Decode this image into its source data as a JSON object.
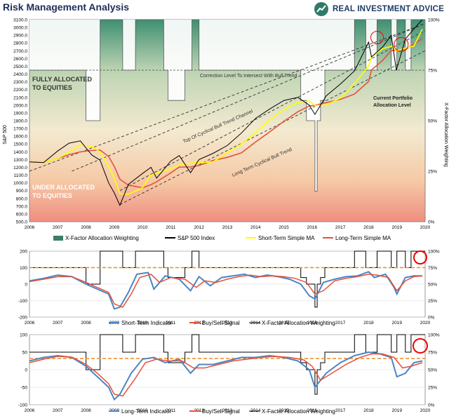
{
  "header": {
    "title": "Risk Management Analysis",
    "logo_text": "REAL INVESTMENT ADVICE"
  },
  "colors": {
    "allocation_fill": "#3a7d6a",
    "sp500": "#000000",
    "short_ma": "#ffff00",
    "long_ma": "#e8503a",
    "indicator_blue": "#4a86c5",
    "signal_red": "#e8503a",
    "dashed_orange": "#f08a24",
    "trend_lines": "#333333"
  },
  "chart_data": [
    {
      "type": "line",
      "title": "",
      "x_ticks": [
        "2006",
        "2007",
        "2008",
        "2009",
        "2010",
        "2011",
        "2012",
        "2013",
        "2014",
        "2015",
        "2016",
        "2017",
        "2018",
        "2019",
        "2020"
      ],
      "xlim": [
        2006,
        2020
      ],
      "ylabel": "S&P 500",
      "ylim": [
        500,
        3100
      ],
      "y_ticks": [
        "500.0",
        "600.0",
        "700.0",
        "800.0",
        "900.0",
        "1000.0",
        "1100.0",
        "1200.0",
        "1300.0",
        "1400.0",
        "1500.0",
        "1600.0",
        "1700.0",
        "1800.0",
        "1900.0",
        "2000.0",
        "2100.0",
        "2200.0",
        "2300.0",
        "2400.0",
        "2500.0",
        "2600.0",
        "2700.0",
        "2800.0",
        "2900.0",
        "3000.0",
        "3100.0"
      ],
      "y2label": "X-Factor Allocation Weighting",
      "y2_ticks": [
        "0%",
        "25%",
        "50%",
        "75%",
        "100%"
      ],
      "legend": [
        "X-Factor Allocation Weighting",
        "S&P 500 Index",
        "Short-Term Simple MA",
        "Long-Term Simple MA"
      ],
      "legend_position": "bottom",
      "annotations": [
        "FULLY ALLOCATED TO EQUITIES",
        "UNDER ALLOCATED TO EQUITIES",
        "Correction Level To Intersect With Bull Trend",
        "Top Of Cyclical Bull Trend Channel",
        "Long Term Cyclical Bull Trend",
        "Current Portfolio Allocation Level"
      ],
      "series": [
        {
          "name": "S&P 500 Index",
          "x": [
            2006,
            2006.5,
            2007,
            2007.4,
            2007.8,
            2008.2,
            2008.5,
            2008.8,
            2009.0,
            2009.2,
            2009.5,
            2010.0,
            2010.3,
            2010.5,
            2011.0,
            2011.3,
            2011.7,
            2012.0,
            2012.5,
            2013.0,
            2013.5,
            2014.0,
            2014.5,
            2015.0,
            2015.5,
            2015.9,
            2016.1,
            2016.5,
            2017.0,
            2017.5,
            2018.0,
            2018.1,
            2018.5,
            2018.8,
            2018.98,
            2019.3,
            2019.6,
            2019.9
          ],
          "y": [
            1270,
            1260,
            1410,
            1510,
            1540,
            1360,
            1290,
            1000,
            870,
            710,
            980,
            1120,
            1200,
            1060,
            1280,
            1350,
            1130,
            1300,
            1380,
            1480,
            1640,
            1830,
            1950,
            2060,
            2100,
            2000,
            1880,
            2120,
            2270,
            2440,
            2810,
            2620,
            2750,
            2900,
            2450,
            2850,
            2980,
            3100
          ]
        },
        {
          "name": "X-Factor Allocation Weighting",
          "x": [
            2006,
            2007.5,
            2007.5,
            2008,
            2008,
            2008.5,
            2008.5,
            2009.3,
            2009.3,
            2009.75,
            2009.75,
            2010.75,
            2010.75,
            2010.9,
            2010.9,
            2011.5,
            2011.5,
            2011.75,
            2011.75,
            2012,
            2012,
            2012.15,
            2012.15,
            2014.8,
            2014.8,
            2015.6,
            2015.6,
            2015.8,
            2015.8,
            2016.1,
            2016.1,
            2016.18,
            2016.18,
            2016.3,
            2016.3,
            2016.45,
            2016.45,
            2017.5,
            2017.5,
            2017.9,
            2017.9,
            2018.3,
            2018.3,
            2018.8,
            2018.8,
            2019.0,
            2019.0,
            2019.3,
            2019.3,
            2019.5,
            2019.5,
            2019.75,
            2019.75,
            2020
          ],
          "y": [
            75,
            75,
            75,
            75,
            50,
            50,
            100,
            100,
            75,
            75,
            100,
            100,
            75,
            75,
            60,
            60,
            75,
            75,
            100,
            100,
            75,
            75,
            75,
            75,
            75,
            75,
            60,
            60,
            50,
            50,
            15,
            15,
            50,
            50,
            60,
            60,
            75,
            75,
            100,
            100,
            75,
            75,
            100,
            100,
            75,
            75,
            100,
            100,
            75,
            75,
            100,
            100,
            100,
            100
          ]
        }
      ]
    },
    {
      "type": "line",
      "title": "",
      "x_ticks": [
        "2006",
        "2007",
        "2008",
        "2009",
        "2010",
        "2011",
        "2012",
        "2013",
        "2014",
        "2015",
        "2016",
        "2017",
        "2018",
        "2019",
        "2020"
      ],
      "xlim": [
        2006,
        2020
      ],
      "ylim": [
        -200,
        200
      ],
      "y_ticks": [
        "-200",
        "-100",
        "0",
        "100",
        "200"
      ],
      "y2_ticks": [
        "0%",
        "25%",
        "50%",
        "75%",
        "100%"
      ],
      "legend": [
        "Short-Term Indicator",
        "Buy/Sell Signal",
        "X-Factor Allocation Weighting"
      ],
      "legend_position": "bottom",
      "dashed_level": 75,
      "series": [
        {
          "name": "Short-Term Indicator",
          "x": [
            2006,
            2006.5,
            2007,
            2007.5,
            2008,
            2008.4,
            2008.8,
            2009.0,
            2009.2,
            2009.5,
            2009.8,
            2010.2,
            2010.4,
            2010.8,
            2011.3,
            2011.7,
            2012.0,
            2012.4,
            2012.8,
            2013.2,
            2013.6,
            2014.0,
            2014.4,
            2014.8,
            2015.2,
            2015.6,
            2015.9,
            2016.1,
            2016.4,
            2016.8,
            2017.2,
            2017.6,
            2018.0,
            2018.2,
            2018.6,
            2018.9,
            2019.0,
            2019.3,
            2019.6,
            2019.9
          ],
          "y": [
            20,
            35,
            55,
            45,
            0,
            -30,
            -60,
            -150,
            -140,
            -50,
            60,
            70,
            -30,
            50,
            30,
            -40,
            45,
            -10,
            40,
            50,
            60,
            40,
            55,
            45,
            30,
            0,
            -70,
            -90,
            10,
            30,
            45,
            50,
            75,
            40,
            60,
            -20,
            -60,
            40,
            50,
            50
          ]
        },
        {
          "name": "Buy/Sell Signal",
          "x": [
            2006,
            2006.5,
            2007,
            2007.5,
            2008,
            2008.4,
            2008.8,
            2009.0,
            2009.3,
            2009.6,
            2009.9,
            2010.3,
            2010.6,
            2011.0,
            2011.5,
            2011.9,
            2012.2,
            2012.6,
            2013.0,
            2013.4,
            2013.8,
            2014.2,
            2014.6,
            2015.0,
            2015.4,
            2015.8,
            2016.1,
            2016.4,
            2016.8,
            2017.2,
            2017.6,
            2018.0,
            2018.3,
            2018.7,
            2019.0,
            2019.3,
            2019.6,
            2019.9
          ],
          "y": [
            15,
            30,
            45,
            45,
            10,
            -20,
            -50,
            -120,
            -140,
            -60,
            40,
            60,
            10,
            40,
            30,
            -20,
            20,
            10,
            30,
            45,
            55,
            45,
            50,
            45,
            35,
            10,
            -60,
            -40,
            20,
            35,
            45,
            60,
            55,
            40,
            -40,
            20,
            45,
            50
          ]
        },
        {
          "name": "X-Factor Allocation Weighting",
          "x": [
            2006,
            2007.5,
            2007.5,
            2008,
            2008,
            2008.5,
            2008.5,
            2009.3,
            2009.3,
            2009.75,
            2009.75,
            2010.75,
            2010.75,
            2010.9,
            2010.9,
            2011.5,
            2011.5,
            2011.75,
            2011.75,
            2012,
            2012,
            2012.15,
            2012.15,
            2014.8,
            2014.8,
            2015.6,
            2015.6,
            2015.8,
            2015.8,
            2016.1,
            2016.1,
            2016.18,
            2016.18,
            2016.3,
            2016.3,
            2016.45,
            2016.45,
            2017.5,
            2017.5,
            2017.9,
            2017.9,
            2018.3,
            2018.3,
            2018.8,
            2018.8,
            2019.0,
            2019.0,
            2019.3,
            2019.3,
            2019.5,
            2019.5,
            2019.75,
            2019.75,
            2020
          ],
          "y": [
            75,
            75,
            75,
            75,
            50,
            50,
            100,
            100,
            75,
            75,
            100,
            100,
            75,
            75,
            60,
            60,
            75,
            75,
            100,
            100,
            75,
            75,
            75,
            75,
            75,
            75,
            60,
            60,
            50,
            50,
            15,
            15,
            50,
            50,
            60,
            60,
            75,
            75,
            100,
            100,
            75,
            75,
            100,
            100,
            75,
            75,
            100,
            100,
            75,
            75,
            100,
            100,
            100,
            100
          ]
        }
      ]
    },
    {
      "type": "line",
      "title": "",
      "x_ticks": [
        "2006",
        "2007",
        "2008",
        "2009",
        "2010",
        "2011",
        "2012",
        "2013",
        "2014",
        "2015",
        "2016",
        "2017",
        "2018",
        "2019",
        "2020"
      ],
      "xlim": [
        2006,
        2020
      ],
      "ylim": [
        -100,
        100
      ],
      "y_ticks": [
        "-100",
        "-50",
        "0",
        "50",
        "100"
      ],
      "y2_ticks": [
        "0%",
        "25%",
        "50%",
        "75%",
        "100%"
      ],
      "legend": [
        "Long-Term Indicator",
        "Buy/Sell Signal",
        "X-Factor Allocation Weighting"
      ],
      "legend_position": "bottom",
      "dashed_level": 66,
      "series": [
        {
          "name": "Long-Term Indicator",
          "x": [
            2006,
            2006.5,
            2007,
            2007.5,
            2008,
            2008.4,
            2008.8,
            2009.0,
            2009.2,
            2009.6,
            2010.0,
            2010.4,
            2010.8,
            2011.3,
            2011.7,
            2012.0,
            2012.5,
            2013.0,
            2013.5,
            2014.0,
            2014.5,
            2015.0,
            2015.5,
            2015.9,
            2016.1,
            2016.5,
            2017.0,
            2017.5,
            2018.0,
            2018.4,
            2018.8,
            2019.0,
            2019.3,
            2019.6,
            2019.9
          ],
          "y": [
            25,
            35,
            40,
            35,
            10,
            -20,
            -50,
            -85,
            -70,
            -10,
            30,
            35,
            20,
            30,
            -10,
            15,
            15,
            25,
            35,
            35,
            40,
            35,
            25,
            0,
            -50,
            -10,
            20,
            40,
            50,
            45,
            35,
            -20,
            -10,
            20,
            25
          ]
        },
        {
          "name": "Buy/Sell Signal",
          "x": [
            2006,
            2006.5,
            2007,
            2007.5,
            2008,
            2008.4,
            2008.8,
            2009.0,
            2009.3,
            2009.7,
            2010.1,
            2010.5,
            2010.9,
            2011.4,
            2011.8,
            2012.2,
            2012.7,
            2013.2,
            2013.7,
            2014.2,
            2014.7,
            2015.2,
            2015.7,
            2016.0,
            2016.3,
            2016.7,
            2017.2,
            2017.7,
            2018.1,
            2018.5,
            2018.9,
            2019.2,
            2019.5,
            2019.9
          ],
          "y": [
            20,
            30,
            38,
            36,
            15,
            -10,
            -40,
            -70,
            -75,
            -30,
            20,
            30,
            25,
            25,
            5,
            5,
            15,
            25,
            30,
            35,
            38,
            35,
            28,
            10,
            -30,
            -10,
            15,
            35,
            45,
            45,
            35,
            5,
            10,
            20
          ]
        },
        {
          "name": "X-Factor Allocation Weighting",
          "x": [
            2006,
            2007.5,
            2007.5,
            2008,
            2008,
            2008.5,
            2008.5,
            2009.3,
            2009.3,
            2009.75,
            2009.75,
            2010.75,
            2010.75,
            2010.9,
            2010.9,
            2011.5,
            2011.5,
            2011.75,
            2011.75,
            2012,
            2012,
            2012.15,
            2012.15,
            2014.8,
            2014.8,
            2015.6,
            2015.6,
            2015.8,
            2015.8,
            2016.1,
            2016.1,
            2016.18,
            2016.18,
            2016.3,
            2016.3,
            2016.45,
            2016.45,
            2017.5,
            2017.5,
            2017.9,
            2017.9,
            2018.3,
            2018.3,
            2018.8,
            2018.8,
            2019.0,
            2019.0,
            2019.3,
            2019.3,
            2019.5,
            2019.5,
            2019.75,
            2019.75,
            2020
          ],
          "y": [
            75,
            75,
            75,
            75,
            50,
            50,
            100,
            100,
            75,
            75,
            100,
            100,
            75,
            75,
            60,
            60,
            75,
            75,
            100,
            100,
            75,
            75,
            75,
            75,
            75,
            75,
            60,
            60,
            50,
            50,
            15,
            15,
            50,
            50,
            60,
            60,
            75,
            75,
            100,
            100,
            75,
            75,
            100,
            100,
            75,
            75,
            100,
            100,
            75,
            75,
            100,
            100,
            100,
            100
          ]
        }
      ]
    }
  ]
}
